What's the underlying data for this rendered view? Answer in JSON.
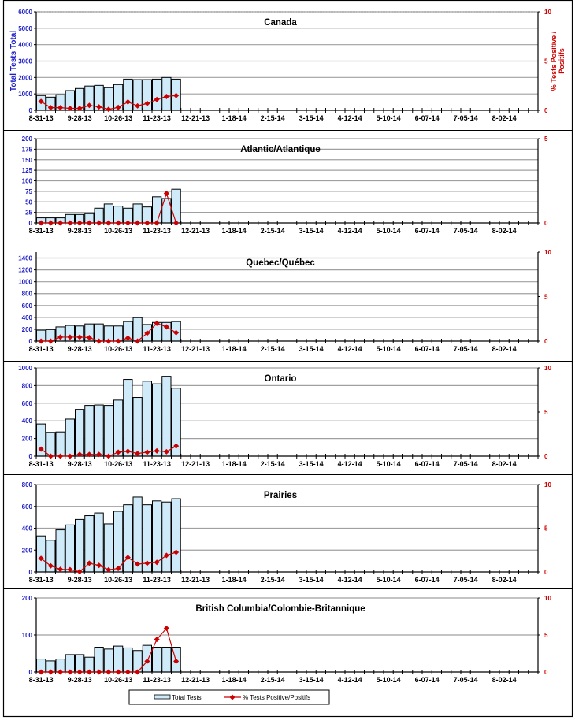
{
  "chart_data": [
    {
      "type": "bar+line",
      "title": "Canada",
      "ylabel": "Total Tests Total",
      "y2label": [
        "% Tests Positive /",
        "Positifs"
      ],
      "ylim": [
        0,
        6000
      ],
      "yticks": [
        0,
        1000,
        2000,
        3000,
        4000,
        5000,
        6000
      ],
      "y2lim": [
        0,
        10
      ],
      "y2ticks": [
        0,
        5,
        10
      ],
      "total_tests": [
        900,
        800,
        950,
        1200,
        1330,
        1480,
        1520,
        1380,
        1570,
        1900,
        1870,
        1870,
        1900,
        2000,
        1900
      ],
      "pct_positive": [
        0.9,
        0.27,
        0.27,
        0.2,
        0.2,
        0.5,
        0.35,
        0.1,
        0.3,
        0.85,
        0.45,
        0.7,
        1.1,
        1.4,
        1.5
      ]
    },
    {
      "type": "bar+line",
      "title": "Atlantic/Atlantique",
      "ylim": [
        0,
        200
      ],
      "yticks": [
        0,
        25,
        50,
        75,
        100,
        125,
        150,
        175,
        200
      ],
      "y2lim": [
        0,
        5
      ],
      "y2ticks": [
        0,
        5
      ],
      "total_tests": [
        12,
        12,
        12,
        20,
        20,
        22,
        35,
        45,
        40,
        35,
        45,
        38,
        62,
        58,
        80
      ],
      "pct_positive": [
        0,
        0,
        0,
        0,
        0,
        0,
        0,
        0,
        0,
        0,
        0,
        0,
        0,
        1.75,
        0
      ]
    },
    {
      "type": "bar+line",
      "title": "Quebec/Québec",
      "ylim": [
        0,
        1500
      ],
      "yticks": [
        0,
        200,
        400,
        600,
        800,
        1000,
        1200,
        1400
      ],
      "y2lim": [
        0,
        10
      ],
      "y2ticks": [
        0,
        5,
        10
      ],
      "total_tests": [
        185,
        195,
        240,
        265,
        255,
        290,
        290,
        255,
        255,
        330,
        395,
        280,
        315,
        315,
        330
      ],
      "pct_positive": [
        0,
        0,
        0.45,
        0.45,
        0.45,
        0.4,
        0,
        0,
        0,
        0.35,
        0,
        0.9,
        2.0,
        1.6,
        0.95
      ]
    },
    {
      "type": "bar+line",
      "title": "Ontario",
      "ylim": [
        0,
        1000
      ],
      "yticks": [
        0,
        200,
        400,
        600,
        800,
        1000
      ],
      "y2lim": [
        0,
        10
      ],
      "y2ticks": [
        0,
        5,
        10
      ],
      "total_tests": [
        365,
        270,
        275,
        420,
        530,
        575,
        580,
        575,
        635,
        870,
        665,
        850,
        820,
        905,
        770
      ],
      "pct_positive": [
        0.8,
        0,
        0,
        0,
        0.2,
        0.2,
        0.2,
        0,
        0.45,
        0.55,
        0.3,
        0.45,
        0.6,
        0.5,
        1.15
      ]
    },
    {
      "type": "bar+line",
      "title": "Prairies",
      "ylim": [
        0,
        800
      ],
      "yticks": [
        0,
        200,
        400,
        600,
        800
      ],
      "y2lim": [
        0,
        10
      ],
      "y2ticks": [
        0,
        5,
        10
      ],
      "total_tests": [
        330,
        290,
        385,
        430,
        480,
        515,
        540,
        440,
        555,
        615,
        685,
        615,
        650,
        640,
        670
      ],
      "pct_positive": [
        1.55,
        0.7,
        0.3,
        0.27,
        0.03,
        1.0,
        0.75,
        0.25,
        0.4,
        1.65,
        0.9,
        1.0,
        1.1,
        1.9,
        2.25
      ]
    },
    {
      "type": "bar+line",
      "title": "British Columbia/Colombie-Britannique",
      "ylim": [
        0,
        200
      ],
      "yticks": [
        0,
        100,
        200
      ],
      "y2lim": [
        0,
        10
      ],
      "y2ticks": [
        0,
        5,
        10
      ],
      "total_tests": [
        35,
        30,
        35,
        47,
        47,
        40,
        67,
        62,
        70,
        65,
        58,
        72,
        67,
        67,
        67
      ],
      "pct_positive": [
        0,
        0,
        0,
        0,
        0,
        0,
        0,
        0,
        0,
        0,
        0,
        1.45,
        4.4,
        5.9,
        1.45
      ]
    }
  ],
  "x_weeks": 52,
  "x_tick_labels": [
    "8-31-13",
    "9-28-13",
    "10-26-13",
    "11-23-13",
    "12-21-13",
    "1-18-14",
    "2-15-14",
    "3-15-14",
    "4-12-14",
    "5-10-14",
    "6-07-14",
    "7-05-14",
    "8-02-14"
  ],
  "legend": {
    "bars": "Total Tests",
    "line": "% Tests Positive/Positifs"
  },
  "colors": {
    "bar_fill": "#cfeaf8",
    "bar_stroke": "#000000",
    "line": "#cc0000",
    "left_axis": "#2020c8",
    "right_axis": "#cc0000",
    "grid": "#a0a0a0"
  }
}
